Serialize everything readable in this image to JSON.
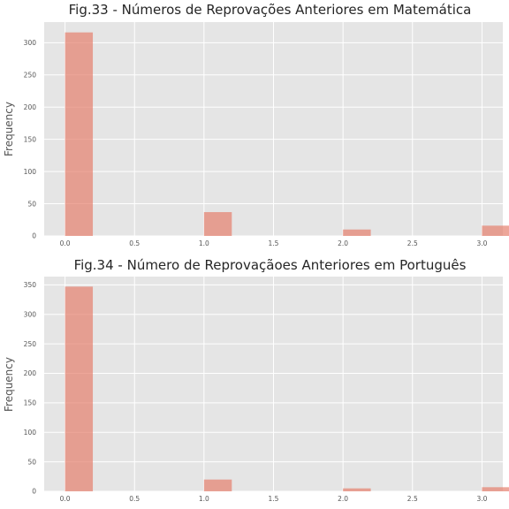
{
  "chart_data": [
    {
      "type": "bar",
      "title": "Fig.33 - Números de Reprovações Anteriores em Matemática",
      "xlabel": "",
      "ylabel": "Frequency",
      "x": [
        0,
        1,
        2,
        3
      ],
      "values": [
        316,
        37,
        10,
        16
      ],
      "bin_width": 0.2,
      "xlim": [
        -0.15,
        3.15
      ],
      "ylim": [
        0,
        332
      ],
      "xticks": [
        "0.0",
        "0.5",
        "1.0",
        "1.5",
        "2.0",
        "2.5",
        "3.0"
      ],
      "yticks": [
        "0",
        "50",
        "100",
        "150",
        "200",
        "250",
        "300"
      ],
      "grid": true,
      "bar_color": "#e5806d",
      "background_color": "#e5e5e5"
    },
    {
      "type": "bar",
      "title": "Fig.34 - Número de Reprovaçãoes Anteriores em  Português",
      "xlabel": "",
      "ylabel": "Frequency",
      "x": [
        0,
        1,
        2,
        3
      ],
      "values": [
        347,
        20,
        5,
        7
      ],
      "bin_width": 0.2,
      "xlim": [
        -0.15,
        3.15
      ],
      "ylim": [
        0,
        364
      ],
      "xticks": [
        "0.0",
        "0.5",
        "1.0",
        "1.5",
        "2.0",
        "2.5",
        "3.0"
      ],
      "yticks": [
        "0",
        "50",
        "100",
        "150",
        "200",
        "250",
        "300",
        "350"
      ],
      "grid": true,
      "bar_color": "#e5806d",
      "background_color": "#e5e5e5"
    }
  ]
}
